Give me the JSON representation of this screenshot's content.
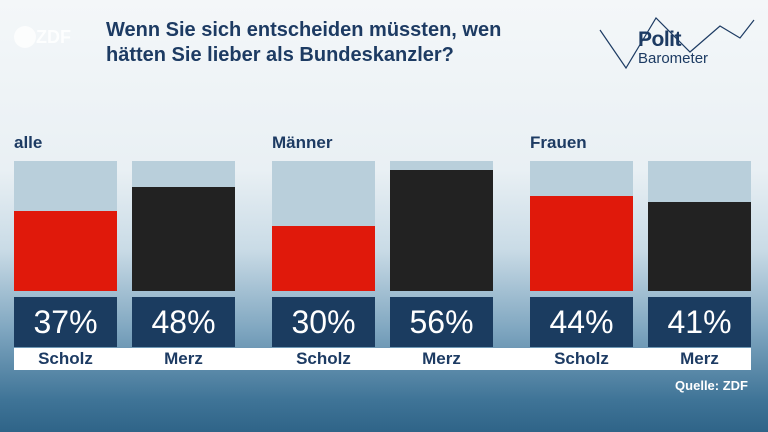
{
  "header": {
    "logo": "ZDF",
    "title_line1": "Wenn Sie sich entscheiden müssten, wen",
    "title_line2": "hätten Sie lieber als Bundeskanzler?",
    "brand_line1": "Polit",
    "brand_line2": "Barometer"
  },
  "source": "Quelle: ZDF",
  "colors": {
    "scholz": "#e0190b",
    "merz": "#222222",
    "bar_background": "#b9cfdb",
    "label_box": "#1b3c60"
  },
  "chart_data": {
    "type": "bar",
    "groups": [
      {
        "name": "alle",
        "bars": [
          {
            "candidate": "Scholz",
            "value": 37,
            "label": "37%"
          },
          {
            "candidate": "Merz",
            "value": 48,
            "label": "48%"
          }
        ]
      },
      {
        "name": "Männer",
        "bars": [
          {
            "candidate": "Scholz",
            "value": 30,
            "label": "30%"
          },
          {
            "candidate": "Merz",
            "value": 56,
            "label": "56%"
          }
        ]
      },
      {
        "name": "Frauen",
        "bars": [
          {
            "candidate": "Scholz",
            "value": 44,
            "label": "44%"
          },
          {
            "candidate": "Merz",
            "value": 41,
            "label": "41%"
          }
        ]
      }
    ],
    "ylim": [
      0,
      60
    ]
  }
}
